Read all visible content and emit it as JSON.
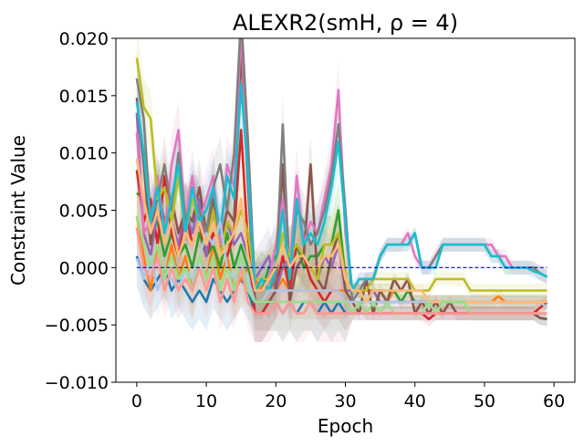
{
  "chart_data": {
    "type": "line",
    "title": "ALEXR2(smH, ρ = 4)",
    "xlabel": "Epoch",
    "ylabel": "Constraint Value",
    "xlim": [
      -3,
      63
    ],
    "ylim": [
      -0.01,
      0.02
    ],
    "x_ticks": [
      "0",
      "10",
      "20",
      "30",
      "40",
      "50",
      "60"
    ],
    "y_ticks": [
      "−0.010",
      "−0.005",
      "0.000",
      "0.005",
      "0.010",
      "0.015",
      "0.020"
    ],
    "grid": false,
    "legend": "none",
    "x_range": [
      0,
      59
    ],
    "series": [
      {
        "color": "#1f77b4",
        "values": [
          0.001,
          -0.001,
          -0.002,
          -0.001,
          0.0,
          -0.002,
          -0.001,
          -0.002,
          -0.003,
          -0.002,
          -0.003,
          -0.001,
          -0.002,
          -0.003,
          -0.002,
          -0.001,
          -0.002,
          -0.004,
          -0.004,
          -0.003,
          -0.003,
          -0.004,
          -0.003,
          -0.004,
          -0.003,
          -0.003,
          -0.004,
          -0.003,
          -0.004,
          -0.003,
          -0.004,
          -0.004,
          -0.004,
          -0.004,
          -0.004,
          -0.004,
          -0.004,
          -0.004,
          -0.004,
          -0.004,
          -0.004,
          -0.004,
          -0.004,
          -0.004,
          -0.004,
          -0.004,
          -0.004,
          -0.004,
          -0.004,
          -0.004,
          -0.004,
          -0.004,
          -0.004,
          -0.004,
          -0.004,
          -0.004,
          -0.004,
          -0.004,
          -0.0044,
          -0.0045
        ]
      },
      {
        "color": "#ff7f0e",
        "values": [
          0.0045,
          0.001,
          -0.002,
          0.002,
          -0.001,
          0.002,
          -0.001,
          0.001,
          -0.002,
          0.001,
          -0.001,
          0.002,
          -0.001,
          0.001,
          -0.002,
          -0.001,
          0.0,
          -0.001,
          -0.002,
          -0.001,
          -0.002,
          -0.001,
          -0.002,
          -0.002,
          -0.002,
          -0.002,
          -0.002,
          -0.002,
          -0.002,
          -0.002,
          -0.002,
          -0.002,
          -0.002,
          -0.002,
          -0.002,
          -0.003,
          -0.003,
          -0.002,
          -0.003,
          -0.003,
          -0.003,
          -0.003,
          -0.003,
          -0.003,
          -0.003,
          -0.003,
          -0.003,
          -0.003,
          -0.003,
          -0.003,
          -0.003,
          -0.003,
          -0.0025,
          -0.003,
          -0.003,
          -0.003,
          -0.003,
          -0.003,
          -0.003,
          -0.003
        ]
      },
      {
        "color": "#2ca02c",
        "values": [
          0.0065,
          0.006,
          0.003,
          0.004,
          0.001,
          0.003,
          0.001,
          0.002,
          0.0,
          0.003,
          0.001,
          0.002,
          0.0,
          0.003,
          0.0,
          0.002,
          0.0,
          -0.002,
          -0.002,
          0.0,
          0.001,
          0.002,
          0.001,
          0.002,
          0.0,
          0.001,
          0.001,
          0.002,
          0.002,
          0.005,
          -0.001,
          -0.002,
          -0.002,
          -0.003,
          -0.002,
          -0.002,
          -0.002,
          -0.002,
          -0.003,
          -0.002,
          -0.003,
          -0.003,
          -0.003,
          -0.003,
          -0.003,
          -0.003,
          -0.003,
          -0.003,
          -0.003,
          -0.003,
          -0.003,
          -0.003,
          -0.003,
          -0.003,
          -0.003,
          -0.003,
          -0.003,
          -0.003,
          -0.003,
          -0.003
        ]
      },
      {
        "color": "#d62728",
        "values": [
          0.0085,
          0.004,
          0.006,
          0.002,
          0.008,
          0.003,
          0.001,
          0.005,
          0.002,
          0.004,
          0.001,
          0.003,
          0.002,
          0.001,
          0.003,
          0.012,
          0.002,
          -0.004,
          -0.004,
          -0.003,
          -0.002,
          0.001,
          -0.002,
          0.002,
          0.001,
          -0.001,
          -0.002,
          -0.003,
          -0.002,
          -0.002,
          -0.003,
          -0.004,
          -0.003,
          -0.004,
          -0.004,
          -0.004,
          -0.004,
          -0.004,
          -0.004,
          -0.004,
          -0.004,
          -0.004,
          -0.0045,
          -0.004,
          -0.004,
          -0.004,
          -0.004,
          -0.004,
          -0.004,
          -0.004,
          -0.004,
          -0.004,
          -0.004,
          -0.004,
          -0.004,
          -0.004,
          -0.004,
          -0.004,
          -0.0035,
          -0.003
        ]
      },
      {
        "color": "#9467bd",
        "values": [
          0.0135,
          0.003,
          0.001,
          0.005,
          0.002,
          0.004,
          0.002,
          0.005,
          0.003,
          0.006,
          0.001,
          0.005,
          0.003,
          0.004,
          0.002,
          0.003,
          0.001,
          -0.001,
          0.0,
          0.001,
          -0.002,
          0.0,
          0.001,
          0.002,
          0.001,
          0.0,
          -0.001,
          0.001,
          0.0,
          0.002,
          -0.002,
          -0.002,
          -0.002,
          -0.003,
          -0.002,
          -0.003,
          -0.003,
          -0.003,
          -0.003,
          -0.003,
          -0.003,
          -0.003,
          -0.003,
          -0.003,
          -0.003,
          -0.003,
          -0.003,
          -0.003,
          -0.003,
          -0.003,
          -0.003,
          -0.003,
          -0.003,
          -0.003,
          -0.003,
          -0.003,
          -0.003,
          -0.003,
          -0.003,
          -0.003
        ]
      },
      {
        "color": "#8c564b",
        "values": [
          0.0148,
          0.009,
          0.002,
          0.007,
          0.004,
          0.006,
          0.003,
          0.005,
          0.004,
          0.007,
          0.003,
          0.006,
          0.002,
          0.005,
          0.004,
          0.019,
          0.007,
          -0.003,
          -0.003,
          -0.003,
          -0.002,
          0.009,
          -0.003,
          0.0,
          0.001,
          0.009,
          -0.001,
          -0.002,
          0.001,
          0.003,
          -0.002,
          -0.003,
          -0.004,
          -0.001,
          -0.004,
          -0.002,
          -0.003,
          -0.001,
          -0.002,
          -0.001,
          -0.004,
          -0.003,
          -0.004,
          -0.003,
          -0.004,
          -0.003,
          -0.004,
          -0.004,
          -0.004,
          -0.004,
          -0.004,
          -0.004,
          -0.004,
          -0.004,
          -0.004,
          -0.004,
          -0.004,
          -0.004,
          -0.0044,
          -0.0045
        ]
      },
      {
        "color": "#e377c2",
        "values": [
          0.0118,
          0.003,
          0.004,
          0.008,
          0.003,
          0.009,
          0.012,
          0.004,
          0.008,
          0.004,
          0.006,
          0.008,
          0.002,
          0.009,
          0.007,
          0.021,
          0.008,
          -0.002,
          -0.002,
          -0.001,
          0.002,
          0.006,
          0.0,
          0.008,
          0.002,
          0.004,
          0.003,
          0.006,
          0.009,
          0.0155,
          0.003,
          -0.002,
          -0.001,
          -0.001,
          -0.001,
          0.001,
          0.002,
          0.002,
          0.002,
          0.003,
          0.001,
          0.0,
          0.0,
          0.001,
          0.002,
          0.002,
          0.002,
          0.002,
          0.002,
          0.002,
          0.002,
          0.002,
          0.001,
          0.001,
          0.0,
          0.0,
          0.0,
          0.0,
          -0.0005,
          -0.0008
        ]
      },
      {
        "color": "#7f7f7f",
        "values": [
          0.0165,
          0.013,
          0.004,
          0.006,
          0.009,
          0.005,
          0.01,
          0.004,
          0.006,
          0.005,
          0.003,
          0.007,
          0.009,
          0.005,
          0.01,
          0.022,
          0.011,
          -0.002,
          -0.001,
          -0.002,
          -0.001,
          0.0125,
          -0.001,
          0.005,
          0.004,
          0.002,
          0.003,
          0.005,
          0.008,
          0.0125,
          0.005,
          -0.003,
          -0.002,
          -0.001,
          -0.001,
          0.001,
          0.002,
          0.002,
          0.002,
          0.002,
          0.003,
          0.0,
          0.0,
          0.001,
          0.002,
          0.002,
          0.002,
          0.002,
          0.002,
          0.002,
          0.002,
          0.001,
          0.001,
          0.0,
          0.0,
          0.0,
          0.0,
          0.0,
          -0.0005,
          -0.0008
        ]
      },
      {
        "color": "#bcbd22",
        "values": [
          0.0183,
          0.014,
          0.013,
          0.006,
          0.007,
          0.004,
          0.008,
          0.003,
          0.006,
          0.004,
          0.002,
          0.005,
          0.001,
          0.004,
          0.003,
          0.005,
          0.003,
          -0.001,
          -0.001,
          -0.001,
          0.0,
          0.003,
          0.001,
          0.002,
          0.001,
          0.0,
          -0.001,
          0.002,
          0.002,
          0.003,
          -0.001,
          -0.002,
          -0.002,
          -0.002,
          -0.001,
          -0.001,
          -0.001,
          -0.001,
          -0.001,
          -0.001,
          -0.002,
          -0.002,
          -0.002,
          -0.001,
          -0.001,
          -0.001,
          -0.001,
          -0.001,
          -0.002,
          -0.002,
          -0.002,
          -0.002,
          -0.002,
          -0.002,
          -0.002,
          -0.002,
          -0.002,
          -0.002,
          -0.002,
          -0.002
        ]
      },
      {
        "color": "#17becf",
        "values": [
          0.0145,
          0.01,
          0.004,
          0.007,
          0.003,
          0.006,
          0.009,
          0.003,
          0.007,
          0.004,
          0.005,
          0.007,
          0.003,
          0.008,
          0.006,
          0.016,
          0.008,
          -0.002,
          -0.001,
          -0.002,
          0.0,
          0.005,
          -0.001,
          0.006,
          0.002,
          0.003,
          0.002,
          0.004,
          0.007,
          0.011,
          0.004,
          -0.002,
          -0.001,
          -0.001,
          -0.001,
          0.001,
          0.002,
          0.002,
          0.002,
          0.002,
          0.003,
          0.0,
          0.0,
          0.0,
          0.002,
          0.002,
          0.002,
          0.002,
          0.002,
          0.002,
          0.002,
          0.001,
          0.001,
          0.0,
          0.0,
          0.0,
          0.0,
          -0.0003,
          -0.0005,
          -0.0008
        ]
      },
      {
        "color": "#aec7e8",
        "values": [
          0.0008,
          -0.001,
          0.001,
          -0.002,
          0.0,
          -0.001,
          -0.002,
          0.0,
          -0.001,
          0.001,
          0.003,
          0.002,
          0.004,
          0.0,
          -0.001,
          0.0,
          -0.001,
          -0.003,
          -0.003,
          -0.002,
          -0.002,
          -0.002,
          -0.002,
          -0.002,
          -0.002,
          -0.002,
          -0.002,
          -0.002,
          -0.002,
          -0.002,
          -0.003,
          -0.003,
          -0.003,
          -0.003,
          -0.003,
          -0.003,
          -0.003,
          -0.003,
          -0.003,
          -0.003,
          -0.003,
          -0.003,
          -0.003,
          -0.003,
          -0.003,
          -0.003,
          -0.003,
          -0.003,
          -0.003,
          -0.003,
          -0.003,
          -0.003,
          -0.003,
          -0.003,
          -0.003,
          -0.003,
          -0.003,
          -0.003,
          -0.003,
          -0.0035
        ]
      },
      {
        "color": "#ffbb78",
        "values": [
          0.0095,
          0.006,
          0.003,
          0.005,
          0.002,
          0.004,
          0.001,
          0.003,
          0.002,
          0.004,
          0.002,
          0.004,
          0.001,
          0.002,
          0.003,
          0.006,
          0.001,
          -0.002,
          -0.002,
          -0.001,
          0.0,
          0.002,
          0.0,
          0.001,
          0.001,
          0.0,
          0.0,
          0.001,
          0.001,
          0.002,
          -0.001,
          -0.002,
          -0.002,
          -0.003,
          -0.002,
          -0.002,
          -0.002,
          -0.002,
          -0.002,
          -0.002,
          -0.002,
          -0.002,
          -0.003,
          -0.003,
          -0.003,
          -0.003,
          -0.003,
          -0.003,
          -0.003,
          -0.003,
          -0.003,
          -0.003,
          -0.003,
          -0.003,
          -0.003,
          -0.003,
          -0.003,
          -0.003,
          -0.003,
          -0.003
        ]
      },
      {
        "color": "#98df8a",
        "values": [
          0.0045,
          0.002,
          0.0,
          0.002,
          -0.001,
          0.001,
          -0.001,
          0.0,
          -0.002,
          0.001,
          -0.001,
          0.001,
          -0.002,
          0.0,
          -0.002,
          0.001,
          -0.002,
          -0.003,
          -0.003,
          -0.003,
          -0.003,
          -0.003,
          -0.003,
          -0.003,
          -0.003,
          -0.003,
          -0.003,
          -0.003,
          -0.003,
          -0.003,
          -0.003,
          -0.004,
          -0.003,
          -0.004,
          -0.003,
          -0.004,
          -0.003,
          -0.004,
          -0.004,
          -0.004,
          -0.004,
          -0.004,
          -0.003,
          -0.004,
          -0.003,
          -0.003,
          -0.003,
          -0.003,
          -0.004,
          -0.004,
          -0.004,
          -0.004,
          -0.004,
          -0.004,
          -0.004,
          -0.004,
          -0.004,
          -0.004,
          -0.004,
          -0.004
        ]
      },
      {
        "color": "#ff9896",
        "values": [
          0.0035,
          0.0,
          -0.001,
          0.001,
          -0.002,
          0.0,
          -0.002,
          -0.001,
          -0.002,
          0.0,
          -0.002,
          0.0,
          -0.003,
          -0.001,
          -0.003,
          0.0,
          -0.003,
          -0.004,
          -0.004,
          -0.004,
          -0.003,
          -0.004,
          -0.003,
          -0.004,
          -0.004,
          -0.003,
          -0.004,
          -0.004,
          -0.004,
          -0.004,
          -0.004,
          -0.004,
          -0.004,
          -0.004,
          -0.004,
          -0.004,
          -0.004,
          -0.004,
          -0.004,
          -0.004,
          -0.004,
          -0.004,
          -0.004,
          -0.004,
          -0.004,
          -0.004,
          -0.004,
          -0.004,
          -0.004,
          -0.004,
          -0.004,
          -0.004,
          -0.004,
          -0.004,
          -0.004,
          -0.004,
          -0.004,
          -0.004,
          -0.004,
          -0.004
        ]
      }
    ],
    "reference_line": {
      "y": 0,
      "color": "#0000cc",
      "style": "dashed"
    }
  }
}
